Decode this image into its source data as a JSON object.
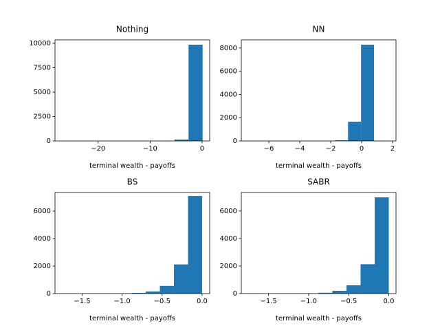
{
  "chart_data": [
    {
      "type": "histogram",
      "title": "Nothing",
      "x_label": "terminal wealth - payoffs",
      "color": "#1f77b4",
      "bins": [
        -26.95,
        -24.245,
        -21.54,
        -18.835,
        -16.13,
        -13.425,
        -10.72,
        -8.015,
        -5.31,
        -2.605,
        0.1
      ],
      "counts": [
        1,
        0,
        0,
        0,
        0,
        0,
        0,
        1,
        140,
        9858
      ],
      "xlim": [
        -28.3,
        1.46
      ],
      "ylim": [
        0,
        10351
      ],
      "xticks": [
        {
          "value": -20,
          "label": "−20"
        },
        {
          "value": -10,
          "label": "−10"
        },
        0
      ],
      "yticks": [
        0,
        2500,
        5000,
        7500,
        10000
      ]
    },
    {
      "type": "histogram",
      "title": "NN",
      "x_label": "terminal wealth - payoffs",
      "color": "#1f77b4",
      "bins": [
        -7.6,
        -6.76,
        -5.92,
        -5.08,
        -4.24,
        -3.4,
        -2.56,
        -1.72,
        -0.88,
        -0.04,
        0.8
      ],
      "counts": [
        1,
        0,
        0,
        0,
        0,
        0,
        0,
        50,
        1660,
        8289
      ],
      "xlim": [
        -7.78,
        2.22
      ],
      "ylim": [
        0,
        8700
      ],
      "xticks": [
        {
          "value": -6,
          "label": "−6"
        },
        {
          "value": -4,
          "label": "−4"
        },
        {
          "value": -2,
          "label": "−2"
        },
        0,
        2
      ],
      "yticks": [
        0,
        2000,
        4000,
        6000,
        8000
      ]
    },
    {
      "type": "histogram",
      "title": "BS",
      "x_label": "terminal wealth - payoffs",
      "color": "#1f77b4",
      "bins": [
        -1.76,
        -1.584,
        -1.408,
        -1.232,
        -1.056,
        -0.88,
        -0.704,
        -0.528,
        -0.352,
        -0.176,
        0.0
      ],
      "counts": [
        1,
        0,
        2,
        5,
        15,
        50,
        150,
        560,
        2120,
        7097
      ],
      "xlim": [
        -1.84,
        0.095
      ],
      "ylim": [
        0,
        7350
      ],
      "xticks": [
        {
          "value": -1.5,
          "label": "−1.5"
        },
        {
          "value": -1.0,
          "label": "−1.0"
        },
        {
          "value": -0.5,
          "label": "−0.5"
        },
        {
          "value": 0,
          "label": "0.0"
        }
      ],
      "yticks": [
        0,
        2000,
        4000,
        6000
      ]
    },
    {
      "type": "histogram",
      "title": "SABR",
      "x_label": "terminal wealth - payoffs",
      "color": "#1f77b4",
      "bins": [
        -1.76,
        -1.584,
        -1.408,
        -1.232,
        -1.056,
        -0.88,
        -0.704,
        -0.528,
        -0.352,
        -0.176,
        0.0
      ],
      "counts": [
        1,
        0,
        2,
        5,
        15,
        60,
        200,
        600,
        2130,
        6987
      ],
      "xlim": [
        -1.84,
        0.09
      ],
      "ylim": [
        0,
        7340
      ],
      "xticks": [
        {
          "value": -1.5,
          "label": "−1.5"
        },
        {
          "value": -1.0,
          "label": "−1.0"
        },
        {
          "value": -0.5,
          "label": "−0.5"
        },
        {
          "value": 0,
          "label": "0.0"
        }
      ],
      "yticks": [
        0,
        2000,
        4000,
        6000
      ]
    }
  ]
}
